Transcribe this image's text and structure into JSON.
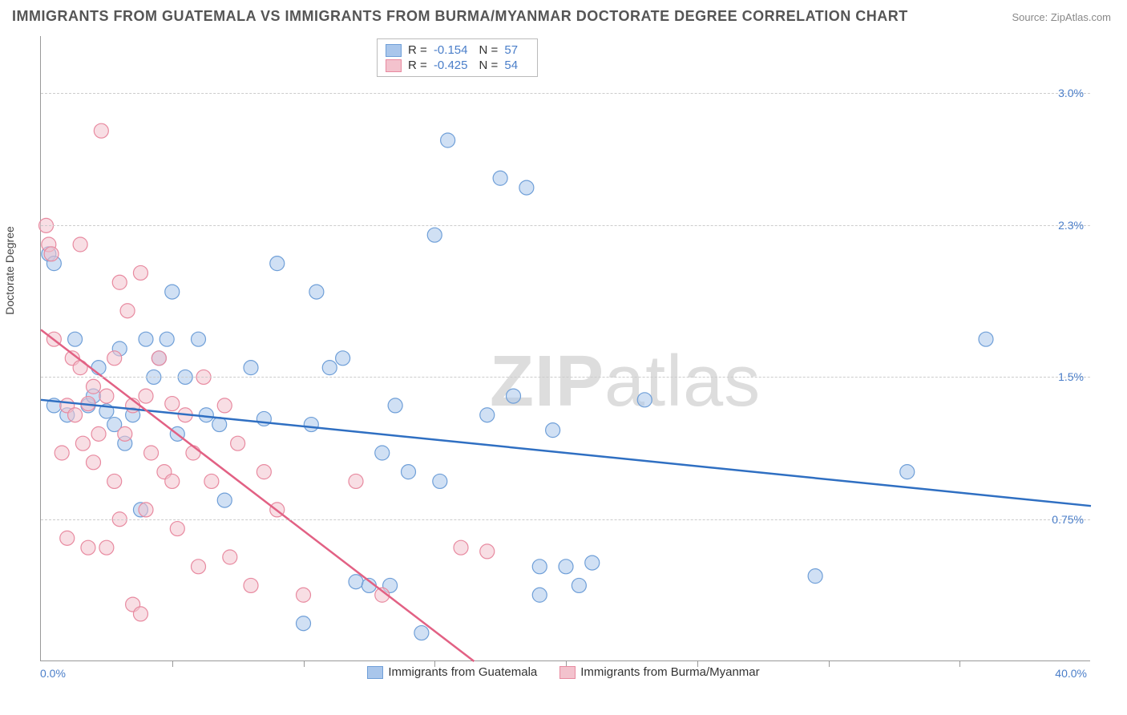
{
  "title": "IMMIGRANTS FROM GUATEMALA VS IMMIGRANTS FROM BURMA/MYANMAR DOCTORATE DEGREE CORRELATION CHART",
  "source": "Source: ZipAtlas.com",
  "watermark_a": "ZIP",
  "watermark_b": "atlas",
  "ylabel": "Doctorate Degree",
  "chart": {
    "type": "scatter",
    "xlim": [
      0,
      40
    ],
    "ylim": [
      0,
      3.3
    ],
    "x_min_label": "0.0%",
    "x_max_label": "40.0%",
    "yticks": [
      0.75,
      1.5,
      2.3,
      3.0
    ],
    "ytick_labels": [
      "0.75%",
      "1.5%",
      "2.3%",
      "3.0%"
    ],
    "xticks": [
      5,
      10,
      15,
      20,
      25,
      30,
      35
    ],
    "grid_color": "#cccccc",
    "background_color": "#ffffff",
    "marker_radius": 9,
    "marker_opacity": 0.55,
    "series": [
      {
        "name": "Immigrants from Guatemala",
        "color_fill": "#a9c6eb",
        "color_stroke": "#6f9fd8",
        "line_color": "#2f6fc2",
        "R": "-0.154",
        "N": "57",
        "trend": {
          "x1": 0,
          "y1": 1.38,
          "x2": 40,
          "y2": 0.82
        },
        "points": [
          [
            0.3,
            2.15
          ],
          [
            0.5,
            2.1
          ],
          [
            0.5,
            1.35
          ],
          [
            1.0,
            1.3
          ],
          [
            1.3,
            1.7
          ],
          [
            1.8,
            1.35
          ],
          [
            2.0,
            1.4
          ],
          [
            2.2,
            1.55
          ],
          [
            2.5,
            1.32
          ],
          [
            2.8,
            1.25
          ],
          [
            3.0,
            1.65
          ],
          [
            3.2,
            1.15
          ],
          [
            3.5,
            1.3
          ],
          [
            3.8,
            0.8
          ],
          [
            4.0,
            1.7
          ],
          [
            4.3,
            1.5
          ],
          [
            4.5,
            1.6
          ],
          [
            4.8,
            1.7
          ],
          [
            5.0,
            1.95
          ],
          [
            5.2,
            1.2
          ],
          [
            5.5,
            1.5
          ],
          [
            6.0,
            1.7
          ],
          [
            6.3,
            1.3
          ],
          [
            6.8,
            1.25
          ],
          [
            7.0,
            0.85
          ],
          [
            8.0,
            1.55
          ],
          [
            8.5,
            1.28
          ],
          [
            9.0,
            2.1
          ],
          [
            10.0,
            0.2
          ],
          [
            10.3,
            1.25
          ],
          [
            10.5,
            1.95
          ],
          [
            11.0,
            1.55
          ],
          [
            11.5,
            1.6
          ],
          [
            12.0,
            0.42
          ],
          [
            12.5,
            0.4
          ],
          [
            13.0,
            1.1
          ],
          [
            13.3,
            0.4
          ],
          [
            13.5,
            1.35
          ],
          [
            14.0,
            1.0
          ],
          [
            14.5,
            0.15
          ],
          [
            15.0,
            2.25
          ],
          [
            15.2,
            0.95
          ],
          [
            15.5,
            2.75
          ],
          [
            17.0,
            1.3
          ],
          [
            17.5,
            2.55
          ],
          [
            18.0,
            1.4
          ],
          [
            18.5,
            2.5
          ],
          [
            19.0,
            0.5
          ],
          [
            19.0,
            0.35
          ],
          [
            19.5,
            1.22
          ],
          [
            20.0,
            0.5
          ],
          [
            20.5,
            0.4
          ],
          [
            21.0,
            0.52
          ],
          [
            23.0,
            1.38
          ],
          [
            29.5,
            0.45
          ],
          [
            36.0,
            1.7
          ],
          [
            33.0,
            1.0
          ]
        ]
      },
      {
        "name": "Immigrants from Burma/Myanmar",
        "color_fill": "#f3c2cd",
        "color_stroke": "#e88aa0",
        "line_color": "#e26184",
        "R": "-0.425",
        "N": "54",
        "trend": {
          "x1": 0,
          "y1": 1.75,
          "x2": 16.5,
          "y2": 0
        },
        "points": [
          [
            0.2,
            2.3
          ],
          [
            0.3,
            2.2
          ],
          [
            0.4,
            2.15
          ],
          [
            0.5,
            1.7
          ],
          [
            0.8,
            1.1
          ],
          [
            1.0,
            0.65
          ],
          [
            1.0,
            1.35
          ],
          [
            1.2,
            1.6
          ],
          [
            1.3,
            1.3
          ],
          [
            1.5,
            1.55
          ],
          [
            1.5,
            2.2
          ],
          [
            1.6,
            1.15
          ],
          [
            1.8,
            0.6
          ],
          [
            1.8,
            1.36
          ],
          [
            2.0,
            1.05
          ],
          [
            2.0,
            1.45
          ],
          [
            2.3,
            2.8
          ],
          [
            2.2,
            1.2
          ],
          [
            2.5,
            1.4
          ],
          [
            2.5,
            0.6
          ],
          [
            2.8,
            1.6
          ],
          [
            2.8,
            0.95
          ],
          [
            3.0,
            0.75
          ],
          [
            3.0,
            2.0
          ],
          [
            3.2,
            1.2
          ],
          [
            3.3,
            1.85
          ],
          [
            3.5,
            1.35
          ],
          [
            3.5,
            0.3
          ],
          [
            3.8,
            0.25
          ],
          [
            3.8,
            2.05
          ],
          [
            4.0,
            1.4
          ],
          [
            4.0,
            0.8
          ],
          [
            4.2,
            1.1
          ],
          [
            4.5,
            1.6
          ],
          [
            4.7,
            1.0
          ],
          [
            5.0,
            1.36
          ],
          [
            5.0,
            0.95
          ],
          [
            5.2,
            0.7
          ],
          [
            5.5,
            1.3
          ],
          [
            5.8,
            1.1
          ],
          [
            6.0,
            0.5
          ],
          [
            6.2,
            1.5
          ],
          [
            6.5,
            0.95
          ],
          [
            7.0,
            1.35
          ],
          [
            7.2,
            0.55
          ],
          [
            7.5,
            1.15
          ],
          [
            8.0,
            0.4
          ],
          [
            8.5,
            1.0
          ],
          [
            9.0,
            0.8
          ],
          [
            10.0,
            0.35
          ],
          [
            12.0,
            0.95
          ],
          [
            13.0,
            0.35
          ],
          [
            16.0,
            0.6
          ],
          [
            17.0,
            0.58
          ]
        ]
      }
    ]
  },
  "legend_top_labels": {
    "R": "R =",
    "N": "N ="
  }
}
